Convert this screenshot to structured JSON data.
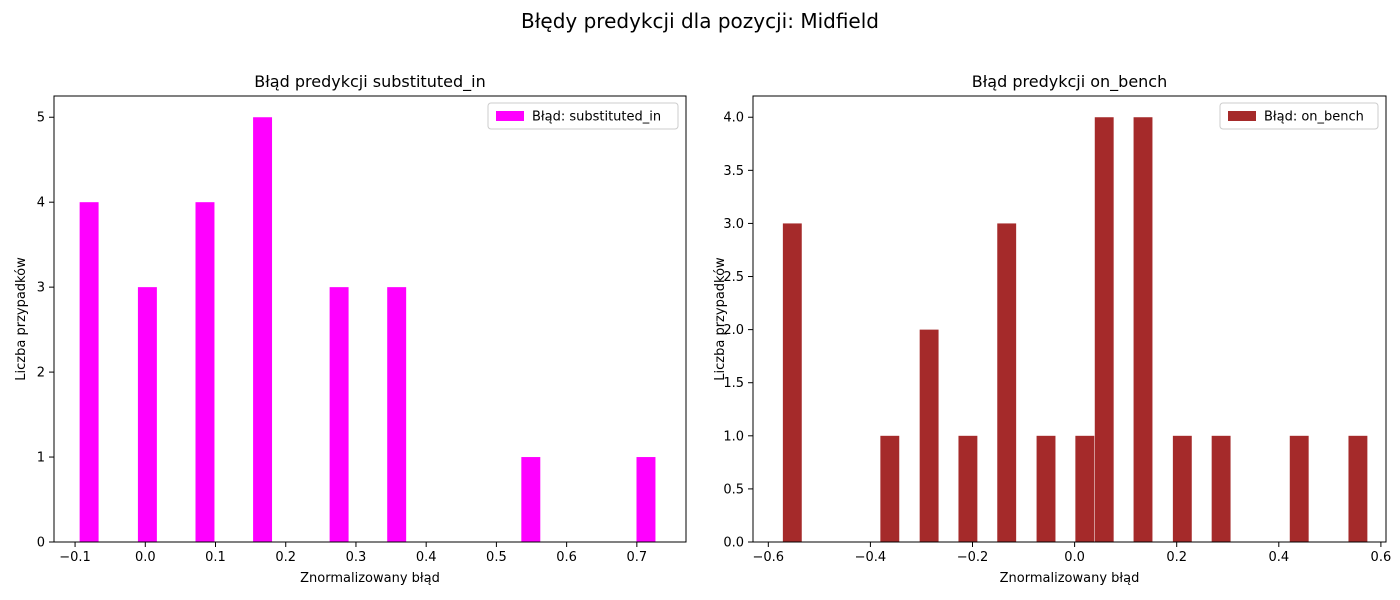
{
  "suptitle": "Błędy predykcji dla pozycji: Midfield",
  "chart_data": [
    {
      "type": "bar",
      "title": "Błąd predykcji substituted_in",
      "xlabel": "Znormalizowany błąd",
      "ylabel": "Liczba przypadków",
      "legend": "Błąd: substituted_in",
      "legend_position": "top-right",
      "color": "#ff00ff",
      "xlim": [
        -0.13,
        0.77
      ],
      "ylim": [
        0,
        5.25
      ],
      "bar_width": 0.027,
      "xticks": [
        -0.1,
        0.0,
        0.1,
        0.2,
        0.3,
        0.4,
        0.5,
        0.6,
        0.7
      ],
      "xtick_labels": [
        "−0.1",
        "0.0",
        "0.1",
        "0.2",
        "0.3",
        "0.4",
        "0.5",
        "0.6",
        "0.7"
      ],
      "yticks": [
        0,
        1,
        2,
        3,
        4,
        5
      ],
      "ytick_labels": [
        "0",
        "1",
        "2",
        "3",
        "4",
        "5"
      ],
      "x": [
        -0.08,
        0.003,
        0.085,
        0.167,
        0.276,
        0.358,
        0.549,
        0.713
      ],
      "values": [
        4,
        3,
        4,
        5,
        3,
        3,
        1,
        1
      ]
    },
    {
      "type": "bar",
      "title": "Błąd predykcji on_bench",
      "xlabel": "Znormalizowany błąd",
      "ylabel": "Liczba przypadków",
      "legend": "Błąd: on_bench",
      "legend_position": "top-right",
      "color": "#a52a2a",
      "xlim": [
        -0.63,
        0.61
      ],
      "ylim": [
        0,
        4.2
      ],
      "bar_width": 0.037,
      "xticks": [
        -0.6,
        -0.4,
        -0.2,
        0.0,
        0.2,
        0.4,
        0.6
      ],
      "xtick_labels": [
        "−0.6",
        "−0.4",
        "−0.2",
        "0.0",
        "0.2",
        "0.4",
        "0.6"
      ],
      "yticks": [
        0,
        0.5,
        1.0,
        1.5,
        2.0,
        2.5,
        3.0,
        3.5,
        4.0
      ],
      "ytick_labels": [
        "0.0",
        "0.5",
        "1.0",
        "1.5",
        "2.0",
        "2.5",
        "3.0",
        "3.5",
        "4.0"
      ],
      "x": [
        -0.553,
        -0.362,
        -0.285,
        -0.209,
        -0.133,
        -0.056,
        0.02,
        0.058,
        0.134,
        0.211,
        0.287,
        0.44,
        0.555
      ],
      "values": [
        3,
        1,
        2,
        1,
        3,
        1,
        1,
        4,
        4,
        1,
        1,
        1,
        1
      ]
    }
  ]
}
